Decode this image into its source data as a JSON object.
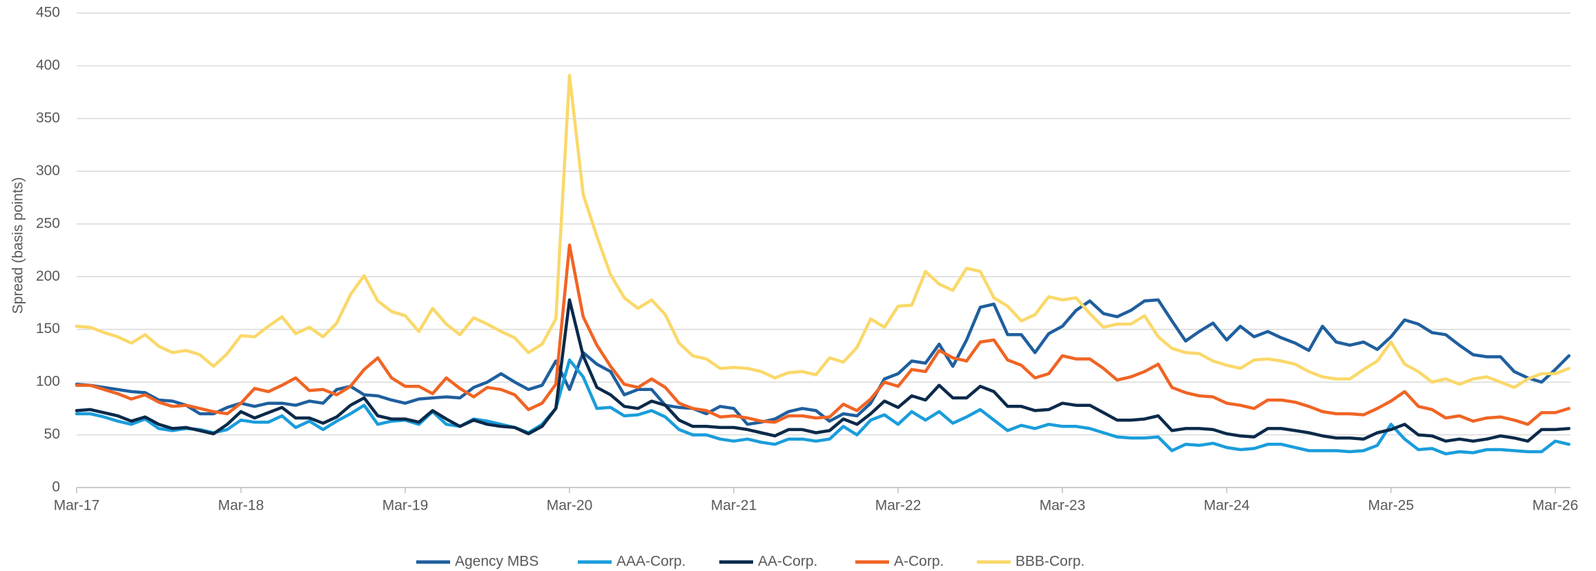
{
  "chart_data": {
    "type": "line",
    "y_label": "Spread (basis points)",
    "ylim": [
      0,
      450
    ],
    "yticks": [
      0,
      50,
      100,
      150,
      200,
      250,
      300,
      350,
      400,
      450
    ],
    "grid": true,
    "legend": "bottom",
    "categories": [
      "Mar-17",
      null,
      null,
      null,
      null,
      null,
      null,
      null,
      null,
      null,
      null,
      null,
      "Mar-18",
      null,
      null,
      null,
      null,
      null,
      null,
      null,
      null,
      null,
      null,
      null,
      "Mar-19",
      null,
      null,
      null,
      null,
      null,
      null,
      null,
      null,
      null,
      null,
      null,
      "Mar-20",
      null,
      null,
      null,
      null,
      null,
      null,
      null,
      null,
      null,
      null,
      null,
      "Mar-21",
      null,
      null,
      null,
      null,
      null,
      null,
      null,
      null,
      null,
      null,
      null,
      "Mar-22",
      null,
      null,
      null,
      null,
      null,
      null,
      null,
      null,
      null,
      null,
      null,
      "Mar-23",
      null,
      null,
      null,
      null,
      null,
      null,
      null,
      null,
      null,
      null,
      null,
      "Mar-24",
      null,
      null,
      null,
      null,
      null,
      null,
      null,
      null,
      null,
      null,
      null,
      "Mar-25",
      null,
      null,
      null,
      null,
      null,
      null,
      null,
      null,
      null,
      null,
      null,
      "Mar-26",
      null
    ],
    "series": [
      {
        "name": "Agency MBS",
        "color": "#1f5f9e",
        "values": [
          98,
          97,
          95,
          93,
          91,
          90,
          83,
          82,
          78,
          70,
          70,
          76,
          80,
          77,
          80,
          80,
          78,
          82,
          80,
          93,
          96,
          88,
          87,
          83,
          80,
          84,
          85,
          86,
          85,
          95,
          100,
          108,
          100,
          93,
          97,
          120,
          93,
          128,
          117,
          110,
          88,
          93,
          93,
          78,
          76,
          75,
          70,
          77,
          75,
          60,
          62,
          65,
          72,
          75,
          73,
          63,
          70,
          68,
          80,
          103,
          108,
          120,
          118,
          136,
          115,
          140,
          171,
          174,
          145,
          145,
          128,
          146,
          153,
          168,
          177,
          165,
          162,
          168,
          177,
          178,
          158,
          139,
          148,
          156,
          140,
          153,
          143,
          148,
          142,
          137,
          130,
          153,
          138,
          135,
          138,
          131,
          143,
          159,
          155,
          147,
          145,
          135,
          126,
          124,
          124,
          110,
          104,
          100,
          112,
          125
        ]
      },
      {
        "name": "AAA-Corp.",
        "color": "#1a9ddb",
        "values": [
          70,
          70,
          67,
          63,
          60,
          65,
          56,
          54,
          56,
          55,
          52,
          55,
          64,
          62,
          62,
          68,
          57,
          63,
          55,
          63,
          70,
          78,
          60,
          63,
          64,
          60,
          72,
          60,
          58,
          65,
          63,
          60,
          57,
          52,
          60,
          75,
          121,
          105,
          75,
          76,
          68,
          69,
          73,
          67,
          55,
          50,
          50,
          46,
          44,
          46,
          43,
          41,
          46,
          46,
          44,
          46,
          58,
          50,
          64,
          69,
          60,
          72,
          64,
          72,
          61,
          67,
          74,
          64,
          54,
          59,
          56,
          60,
          58,
          58,
          56,
          52,
          48,
          47,
          47,
          48,
          35,
          41,
          40,
          42,
          38,
          36,
          37,
          41,
          41,
          38,
          35,
          35,
          35,
          34,
          35,
          40,
          60,
          46,
          36,
          37,
          32,
          34,
          33,
          36,
          36,
          35,
          34,
          34,
          44,
          41
        ]
      },
      {
        "name": "AA-Corp.",
        "color": "#0b2a4a",
        "values": [
          73,
          74,
          71,
          68,
          63,
          67,
          60,
          56,
          57,
          54,
          51,
          60,
          72,
          66,
          71,
          76,
          66,
          66,
          61,
          67,
          78,
          85,
          68,
          65,
          65,
          62,
          73,
          65,
          58,
          64,
          60,
          58,
          57,
          51,
          58,
          75,
          178,
          125,
          95,
          88,
          77,
          75,
          82,
          78,
          64,
          58,
          58,
          57,
          57,
          55,
          52,
          49,
          55,
          55,
          52,
          54,
          65,
          60,
          70,
          82,
          76,
          87,
          83,
          97,
          85,
          85,
          96,
          91,
          77,
          77,
          73,
          74,
          80,
          78,
          78,
          71,
          64,
          64,
          65,
          68,
          54,
          56,
          56,
          55,
          51,
          49,
          48,
          56,
          56,
          54,
          52,
          49,
          47,
          47,
          46,
          52,
          55,
          60,
          50,
          49,
          44,
          46,
          44,
          46,
          49,
          47,
          44,
          55,
          55,
          56
        ]
      },
      {
        "name": "A-Corp.",
        "color": "#f06424",
        "values": [
          97,
          97,
          93,
          89,
          84,
          88,
          81,
          77,
          78,
          75,
          72,
          70,
          80,
          94,
          91,
          97,
          104,
          92,
          93,
          88,
          96,
          112,
          123,
          104,
          96,
          96,
          89,
          104,
          94,
          86,
          95,
          93,
          88,
          74,
          80,
          98,
          230,
          162,
          135,
          115,
          98,
          95,
          103,
          95,
          80,
          75,
          73,
          67,
          68,
          66,
          63,
          62,
          68,
          68,
          66,
          67,
          79,
          73,
          84,
          100,
          96,
          112,
          110,
          130,
          123,
          120,
          138,
          140,
          121,
          116,
          104,
          108,
          125,
          122,
          122,
          113,
          102,
          105,
          110,
          117,
          95,
          90,
          87,
          86,
          80,
          78,
          75,
          83,
          83,
          81,
          77,
          72,
          70,
          70,
          69,
          75,
          82,
          91,
          77,
          74,
          66,
          68,
          63,
          66,
          67,
          64,
          60,
          71,
          71,
          75
        ]
      },
      {
        "name": "BBB-Corp.",
        "color": "#fad86a",
        "values": [
          153,
          152,
          147,
          143,
          137,
          145,
          134,
          128,
          130,
          126,
          115,
          127,
          144,
          143,
          153,
          162,
          146,
          152,
          143,
          156,
          183,
          201,
          177,
          167,
          163,
          148,
          170,
          155,
          145,
          161,
          155,
          148,
          142,
          128,
          136,
          160,
          391,
          278,
          238,
          202,
          180,
          170,
          178,
          164,
          137,
          125,
          122,
          113,
          114,
          113,
          110,
          104,
          109,
          110,
          107,
          123,
          119,
          133,
          160,
          152,
          172,
          173,
          205,
          193,
          187,
          208,
          205,
          180,
          172,
          158,
          164,
          181,
          178,
          180,
          165,
          152,
          155,
          155,
          163,
          143,
          132,
          128,
          127,
          120,
          116,
          113,
          121,
          122,
          120,
          117,
          110,
          105,
          103,
          103,
          112,
          120,
          138,
          117,
          110,
          100,
          103,
          98,
          103,
          105,
          100,
          95,
          103,
          108,
          108,
          113
        ]
      }
    ]
  }
}
